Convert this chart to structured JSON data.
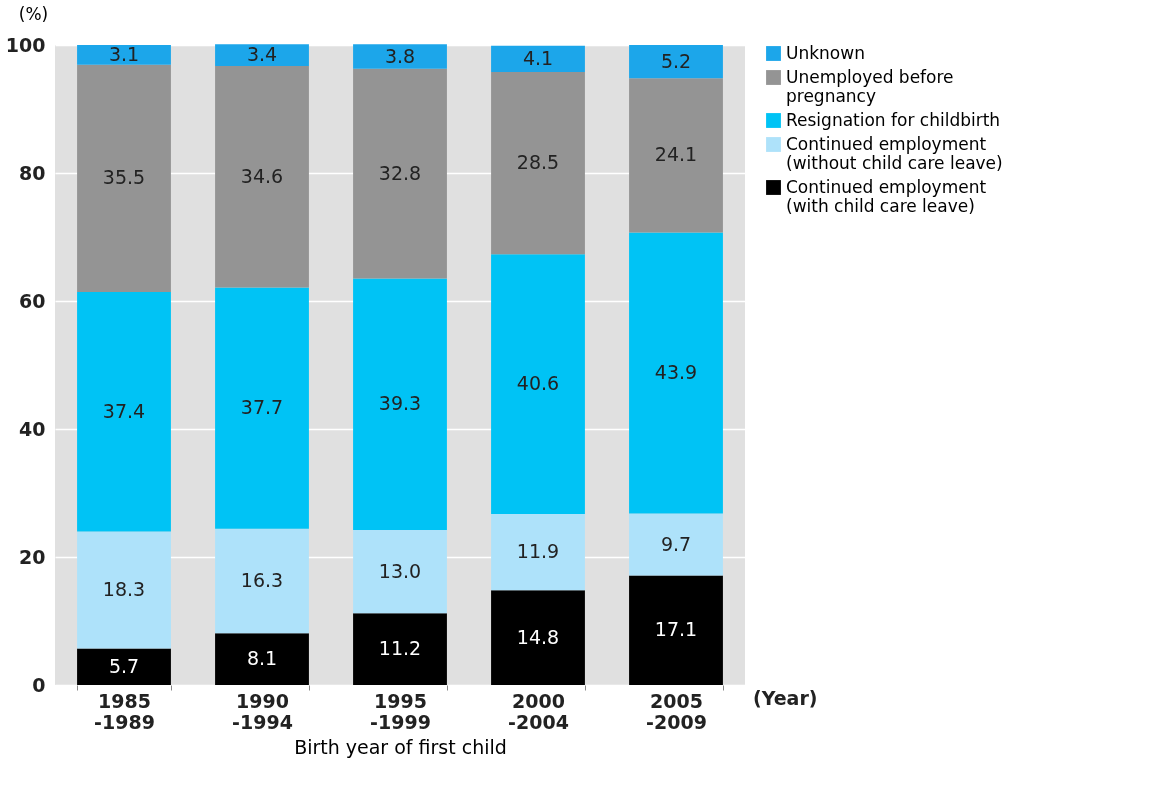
{
  "chart_data": {
    "type": "bar",
    "stacked": true,
    "ylabel": "(%)",
    "xlabel": "Birth year of first child",
    "annotations": [
      "(Year)"
    ],
    "categories": [
      "1985\n-1989",
      "1990\n-1994",
      "1995\n-1999",
      "2000\n-2004",
      "2005\n-2009"
    ],
    "series": [
      {
        "name": "Continued employment\n(with child care leave)",
        "color": "#000000",
        "values": [
          5.7,
          8.1,
          11.2,
          14.8,
          17.1
        ]
      },
      {
        "name": "Continued employment\n(without child care leave)",
        "color": "#aee2fa",
        "values": [
          18.3,
          16.3,
          13.0,
          11.9,
          9.7
        ],
        "value_labels": [
          "18.3",
          "16.3",
          "13.0",
          "11.9",
          "9.7"
        ]
      },
      {
        "name": "Resignation for childbirth",
        "color": "#00c3f5",
        "values": [
          37.4,
          37.7,
          39.3,
          40.6,
          43.9
        ]
      },
      {
        "name": "Unemployed before\npregnancy",
        "color": "#949494",
        "values": [
          35.5,
          34.6,
          32.8,
          28.5,
          24.1
        ]
      },
      {
        "name": "Unknown",
        "color": "#1ca6ea",
        "values": [
          3.1,
          3.4,
          3.8,
          4.1,
          5.2
        ]
      }
    ],
    "ylim": [
      0,
      100
    ],
    "yticks": [
      0,
      20,
      40,
      60,
      80,
      100
    ],
    "grid": "y",
    "legend": "right",
    "data_labels": true
  }
}
